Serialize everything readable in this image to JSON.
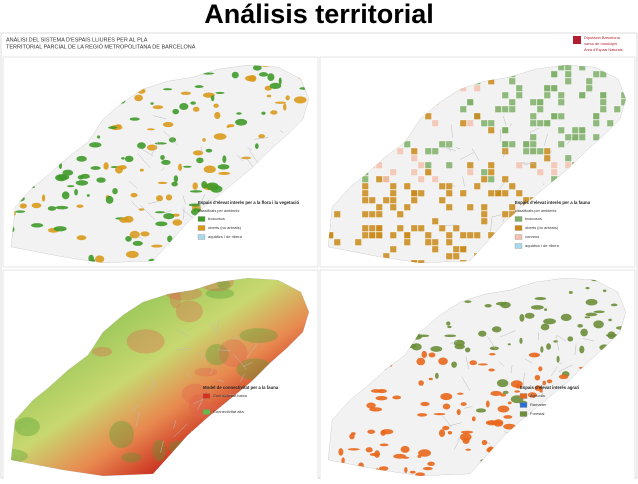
{
  "title": "Análisis territorial",
  "header": {
    "line1": "ANÀLISI DEL SISTEMA D'ESPAIS LLIURES PER AL PLA",
    "line2": "TERRITORIAL PARCIAL DE LA REGIÓ METROPOLITANA DE BARCELONA"
  },
  "logo": {
    "name": "Diputació Barcelona",
    "sub": "xarxa de municipis",
    "area": "Àrea d'Espais Naturals"
  },
  "maps": [
    {
      "legend_title": "Espais d'elevat interès per a la flora i la vegetació",
      "legend_subtitle": "classificats per ambients",
      "items": [
        {
          "label": "boscosos",
          "color": "#3f9a2a"
        },
        {
          "label": "oberts (no arbrats)",
          "color": "#d99a1c"
        },
        {
          "label": "aquàtics i de ribera",
          "color": "#a8d8ea"
        }
      ]
    },
    {
      "legend_title": "Espais d'elevat interès per a la fauna",
      "legend_subtitle": "classificats per ambients",
      "items": [
        {
          "label": "boscosos",
          "color": "#7fb069"
        },
        {
          "label": "oberts (no arbrats)",
          "color": "#c98a1a"
        },
        {
          "label": "conreus",
          "color": "#f4c2b0"
        },
        {
          "label": "aquàtics i de ribera",
          "color": "#a8d8ea"
        }
      ]
    },
    {
      "legend_title": "Model de connectivitat per a la fauna",
      "items": [
        {
          "label": "Connectivitat baixa",
          "color": "#d7301f"
        },
        {
          "label": "Connectivitat alta",
          "color": "#66bb44"
        }
      ]
    },
    {
      "legend_title": "Espais d'elevat interès agrari",
      "items": [
        {
          "label": "Agrícola",
          "color": "#e8671c"
        },
        {
          "label": "Ramader",
          "color": "#2b6fd6"
        },
        {
          "label": "Forestal",
          "color": "#6b8e3a"
        }
      ]
    }
  ]
}
